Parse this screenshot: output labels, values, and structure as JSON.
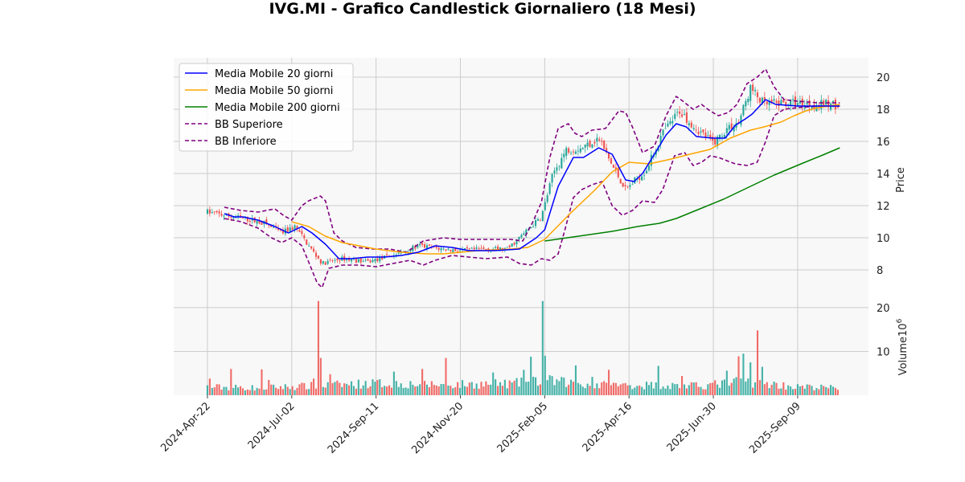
{
  "chart_data": {
    "type": "candlestick",
    "title": "IVG.MI - Grafico Candlestick Giornaliero (18 Mesi)",
    "ylabel_price": "Price",
    "ylabel_volume": "Volume",
    "volume_exponent_label": "10",
    "volume_exponent_power": "6",
    "x_tick_labels": [
      "2024-Apr-22",
      "2024-Jul-02",
      "2024-Sep-11",
      "2024-Nov-20",
      "2025-Feb-05",
      "2025-Apr-16",
      "2025-Jun-30",
      "2025-Sep-09"
    ],
    "x_tick_days": [
      0,
      50,
      100,
      150,
      200,
      250,
      300,
      350
    ],
    "x_range_days": [
      -20,
      392
    ],
    "price_ylim": [
      6.2,
      21.2
    ],
    "price_ticks": [
      8,
      10,
      12,
      14,
      16,
      18,
      20
    ],
    "volume_ylim": [
      0,
      22
    ],
    "volume_ticks": [
      10,
      20
    ],
    "grid": true,
    "legend_position": "top-left",
    "colors": {
      "up": "#26a69a",
      "down": "#ef5350",
      "ma20": "#0000ff",
      "ma50": "#ffa500",
      "ma200": "#008000",
      "bb": "#800080",
      "panel_bg": "#f8f8f8",
      "grid": "#cccccc"
    },
    "legend": [
      {
        "label": "Media Mobile 20 giorni",
        "color": "#0000ff",
        "style": "solid"
      },
      {
        "label": "Media Mobile 50 giorni",
        "color": "#ffa500",
        "style": "solid"
      },
      {
        "label": "Media Mobile 200 giorni",
        "color": "#008000",
        "style": "solid"
      },
      {
        "label": "BB Superiore",
        "color": "#800080",
        "style": "dashed"
      },
      {
        "label": "BB Inferiore",
        "color": "#800080",
        "style": "dashed"
      }
    ],
    "price_anchors": [
      [
        0,
        11.6
      ],
      [
        10,
        11.4
      ],
      [
        22,
        11.2
      ],
      [
        34,
        10.9
      ],
      [
        44,
        10.3
      ],
      [
        52,
        10.7
      ],
      [
        60,
        9.5
      ],
      [
        68,
        8.4
      ],
      [
        80,
        8.7
      ],
      [
        95,
        8.5
      ],
      [
        110,
        8.9
      ],
      [
        125,
        9.5
      ],
      [
        140,
        9.3
      ],
      [
        152,
        9.2
      ],
      [
        165,
        9.3
      ],
      [
        178,
        9.3
      ],
      [
        190,
        10.5
      ],
      [
        198,
        11.3
      ],
      [
        205,
        14.0
      ],
      [
        213,
        15.5
      ],
      [
        222,
        15.6
      ],
      [
        232,
        16.2
      ],
      [
        240,
        14.5
      ],
      [
        248,
        13.0
      ],
      [
        260,
        14.2
      ],
      [
        270,
        16.5
      ],
      [
        280,
        17.9
      ],
      [
        290,
        16.8
      ],
      [
        300,
        15.9
      ],
      [
        308,
        16.8
      ],
      [
        315,
        17.2
      ],
      [
        322,
        19.3
      ],
      [
        330,
        18.3
      ],
      [
        345,
        18.4
      ],
      [
        360,
        18.3
      ],
      [
        375,
        18.3
      ]
    ],
    "volume_anchors": [
      [
        0,
        1.8
      ],
      [
        30,
        1.6
      ],
      [
        60,
        2.0
      ],
      [
        100,
        2.6
      ],
      [
        140,
        2.3
      ],
      [
        180,
        2.5
      ],
      [
        200,
        3.2
      ],
      [
        230,
        2.2
      ],
      [
        260,
        2.2
      ],
      [
        290,
        2.0
      ],
      [
        320,
        3.0
      ],
      [
        350,
        1.8
      ],
      [
        375,
        1.6
      ]
    ],
    "volume_spikes": [
      [
        2,
        3.8
      ],
      [
        14,
        6.0
      ],
      [
        32,
        5.9
      ],
      [
        37,
        3.5
      ],
      [
        63,
        3.8
      ],
      [
        66,
        21.5
      ],
      [
        67,
        8.5
      ],
      [
        73,
        4.8
      ],
      [
        110,
        5.4
      ],
      [
        128,
        6.0
      ],
      [
        142,
        8.5
      ],
      [
        170,
        5.2
      ],
      [
        187,
        5.8
      ],
      [
        192,
        8.8
      ],
      [
        199,
        21.5
      ],
      [
        200,
        9.0
      ],
      [
        218,
        6.8
      ],
      [
        228,
        4.2
      ],
      [
        238,
        5.8
      ],
      [
        268,
        6.7
      ],
      [
        282,
        4.4
      ],
      [
        308,
        5.6
      ],
      [
        315,
        8.9
      ],
      [
        318,
        9.5
      ],
      [
        322,
        7.5
      ],
      [
        326,
        14.8
      ],
      [
        329,
        6.5
      ]
    ],
    "ma20": [
      [
        10,
        11.5
      ],
      [
        16,
        11.3
      ],
      [
        21,
        11.3
      ],
      [
        30,
        11.1
      ],
      [
        40,
        10.7
      ],
      [
        48,
        10.3
      ],
      [
        56,
        10.7
      ],
      [
        62,
        10.3
      ],
      [
        70,
        9.6
      ],
      [
        78,
        8.7
      ],
      [
        85,
        8.7
      ],
      [
        95,
        8.8
      ],
      [
        105,
        8.8
      ],
      [
        115,
        8.9
      ],
      [
        125,
        9.1
      ],
      [
        135,
        9.5
      ],
      [
        145,
        9.4
      ],
      [
        155,
        9.2
      ],
      [
        170,
        9.2
      ],
      [
        185,
        9.3
      ],
      [
        195,
        10.0
      ],
      [
        200,
        10.5
      ],
      [
        208,
        13.2
      ],
      [
        217,
        15.0
      ],
      [
        223,
        15.0
      ],
      [
        232,
        15.6
      ],
      [
        240,
        15.2
      ],
      [
        248,
        13.6
      ],
      [
        253,
        13.5
      ],
      [
        258,
        14.0
      ],
      [
        265,
        15.2
      ],
      [
        272,
        16.4
      ],
      [
        278,
        17.1
      ],
      [
        284,
        16.9
      ],
      [
        290,
        16.3
      ],
      [
        300,
        16.2
      ],
      [
        307,
        16.2
      ],
      [
        313,
        17.0
      ],
      [
        319,
        17.4
      ],
      [
        323,
        17.7
      ],
      [
        331,
        18.6
      ],
      [
        337,
        18.3
      ],
      [
        350,
        18.2
      ],
      [
        360,
        18.2
      ],
      [
        375,
        18.2
      ]
    ],
    "ma50": [
      [
        50,
        11.0
      ],
      [
        60,
        10.7
      ],
      [
        70,
        10.1
      ],
      [
        80,
        9.7
      ],
      [
        90,
        9.5
      ],
      [
        100,
        9.3
      ],
      [
        115,
        9.1
      ],
      [
        130,
        9.0
      ],
      [
        140,
        9.0
      ],
      [
        160,
        9.2
      ],
      [
        180,
        9.3
      ],
      [
        190,
        9.4
      ],
      [
        200,
        9.9
      ],
      [
        215,
        11.5
      ],
      [
        230,
        13.0
      ],
      [
        240,
        14.1
      ],
      [
        250,
        14.7
      ],
      [
        262,
        14.6
      ],
      [
        275,
        14.9
      ],
      [
        286,
        15.2
      ],
      [
        298,
        15.5
      ],
      [
        310,
        16.2
      ],
      [
        322,
        16.7
      ],
      [
        330,
        16.9
      ],
      [
        340,
        17.2
      ],
      [
        348,
        17.6
      ],
      [
        355,
        17.9
      ],
      [
        362,
        18.1
      ],
      [
        375,
        18.3
      ]
    ],
    "ma200": [
      [
        200,
        9.8
      ],
      [
        220,
        10.1
      ],
      [
        240,
        10.4
      ],
      [
        255,
        10.7
      ],
      [
        268,
        10.9
      ],
      [
        278,
        11.2
      ],
      [
        292,
        11.8
      ],
      [
        306,
        12.4
      ],
      [
        320,
        13.1
      ],
      [
        336,
        13.9
      ],
      [
        352,
        14.6
      ],
      [
        366,
        15.2
      ],
      [
        375,
        15.6
      ]
    ],
    "bb_upper": [
      [
        10,
        11.9
      ],
      [
        20,
        11.7
      ],
      [
        30,
        11.6
      ],
      [
        40,
        11.8
      ],
      [
        45,
        11.4
      ],
      [
        50,
        11.1
      ],
      [
        56,
        12.0
      ],
      [
        60,
        12.3
      ],
      [
        67,
        12.6
      ],
      [
        70,
        12.3
      ],
      [
        75,
        10.3
      ],
      [
        80,
        9.8
      ],
      [
        88,
        9.4
      ],
      [
        98,
        9.3
      ],
      [
        108,
        9.3
      ],
      [
        118,
        9.1
      ],
      [
        128,
        9.8
      ],
      [
        140,
        10.0
      ],
      [
        150,
        9.9
      ],
      [
        165,
        9.9
      ],
      [
        180,
        9.9
      ],
      [
        187,
        9.8
      ],
      [
        193,
        11.0
      ],
      [
        198,
        12.2
      ],
      [
        203,
        15.0
      ],
      [
        208,
        16.8
      ],
      [
        214,
        17.1
      ],
      [
        218,
        16.5
      ],
      [
        222,
        16.3
      ],
      [
        228,
        16.7
      ],
      [
        236,
        16.8
      ],
      [
        244,
        17.9
      ],
      [
        248,
        17.8
      ],
      [
        252,
        16.9
      ],
      [
        258,
        15.3
      ],
      [
        265,
        15.7
      ],
      [
        272,
        17.6
      ],
      [
        278,
        18.8
      ],
      [
        282,
        18.5
      ],
      [
        288,
        18.0
      ],
      [
        293,
        18.3
      ],
      [
        298,
        17.9
      ],
      [
        303,
        17.6
      ],
      [
        309,
        17.8
      ],
      [
        314,
        18.3
      ],
      [
        320,
        19.6
      ],
      [
        326,
        20.0
      ],
      [
        331,
        20.5
      ],
      [
        336,
        19.4
      ],
      [
        342,
        18.6
      ],
      [
        350,
        18.5
      ],
      [
        362,
        18.4
      ],
      [
        375,
        18.4
      ]
    ],
    "bb_lower": [
      [
        10,
        11.2
      ],
      [
        20,
        11.0
      ],
      [
        30,
        10.6
      ],
      [
        38,
        10.0
      ],
      [
        44,
        9.7
      ],
      [
        50,
        10.0
      ],
      [
        56,
        9.5
      ],
      [
        60,
        8.5
      ],
      [
        65,
        7.2
      ],
      [
        68,
        6.9
      ],
      [
        72,
        8.1
      ],
      [
        80,
        8.3
      ],
      [
        90,
        8.3
      ],
      [
        100,
        8.2
      ],
      [
        110,
        8.4
      ],
      [
        120,
        8.6
      ],
      [
        128,
        8.3
      ],
      [
        135,
        8.6
      ],
      [
        145,
        8.9
      ],
      [
        155,
        8.8
      ],
      [
        165,
        8.7
      ],
      [
        178,
        8.8
      ],
      [
        185,
        8.4
      ],
      [
        192,
        8.3
      ],
      [
        198,
        8.7
      ],
      [
        203,
        8.6
      ],
      [
        208,
        9.0
      ],
      [
        212,
        10.5
      ],
      [
        217,
        12.5
      ],
      [
        222,
        13.0
      ],
      [
        228,
        13.3
      ],
      [
        234,
        13.5
      ],
      [
        240,
        12.0
      ],
      [
        246,
        11.4
      ],
      [
        252,
        11.7
      ],
      [
        258,
        12.3
      ],
      [
        265,
        12.2
      ],
      [
        270,
        13.0
      ],
      [
        277,
        15.1
      ],
      [
        283,
        15.3
      ],
      [
        288,
        14.5
      ],
      [
        293,
        14.7
      ],
      [
        298,
        15.1
      ],
      [
        303,
        15.0
      ],
      [
        308,
        14.8
      ],
      [
        313,
        14.6
      ],
      [
        320,
        14.5
      ],
      [
        326,
        14.7
      ],
      [
        331,
        16.0
      ],
      [
        336,
        17.6
      ],
      [
        342,
        18.0
      ],
      [
        350,
        18.1
      ],
      [
        362,
        18.2
      ],
      [
        375,
        18.2
      ]
    ]
  }
}
